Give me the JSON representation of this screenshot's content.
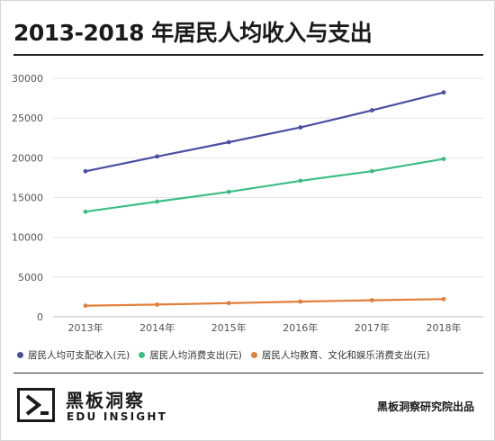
{
  "title": "2013-2018 年居民人均收入与支出",
  "chart_data": {
    "type": "line",
    "title": "2013-2018 年居民人均收入与支出",
    "categories": [
      "2013年",
      "2014年",
      "2015年",
      "2016年",
      "2017年",
      "2018年"
    ],
    "ylim": [
      0,
      30000
    ],
    "yticks": [
      0,
      5000,
      10000,
      15000,
      20000,
      25000,
      30000
    ],
    "grid": true,
    "legend_position": "bottom",
    "series": [
      {
        "name": "居民人均可支配收入(元)",
        "color": "#4a4fa3",
        "values": [
          18311,
          20167,
          21966,
          23821,
          25974,
          28228
        ]
      },
      {
        "name": "居民人均消费支出(元)",
        "color": "#3dbd85",
        "values": [
          13220,
          14491,
          15712,
          17111,
          18322,
          19853
        ]
      },
      {
        "name": "居民人均教育、文化和娱乐消费支出(元)",
        "color": "#e07e3a",
        "values": [
          1398,
          1536,
          1723,
          1915,
          2086,
          2226
        ]
      }
    ]
  },
  "brand": {
    "name_cn": "黑板洞察",
    "name_en": "EDU INSIGHT"
  },
  "credit": "黑板洞察研究院出品"
}
